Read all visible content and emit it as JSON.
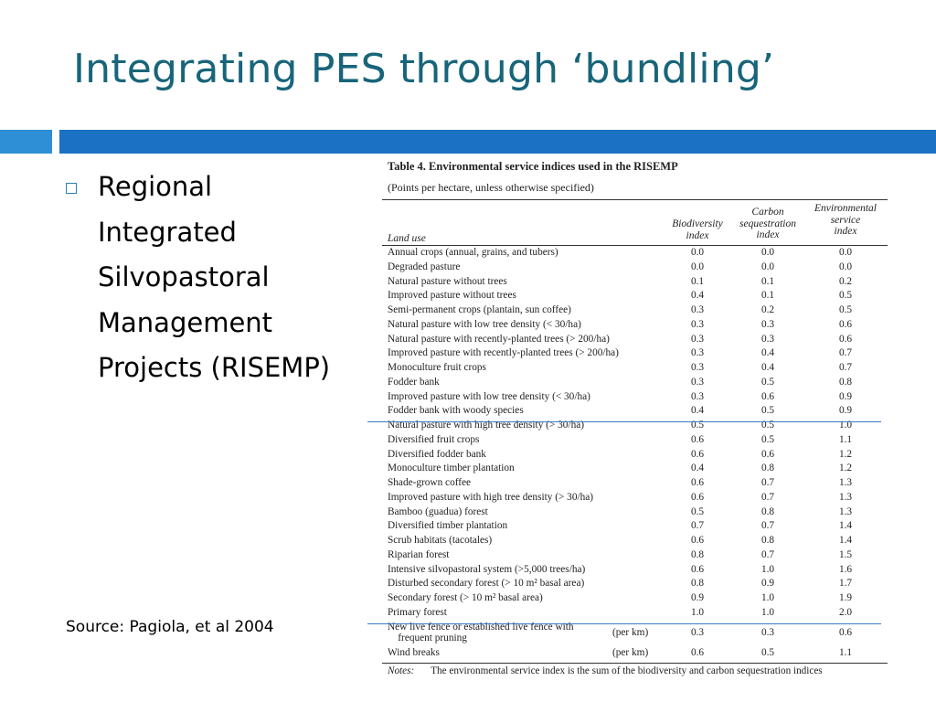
{
  "slide": {
    "title": "Integrating PES through ‘bundling’",
    "bullet": "Regional\nIntegrated\nSilvopastoral\nManagement\nProjects (RISEMP)",
    "source": "Source: Pagiola, et al 2004",
    "colors": {
      "title": "#17657a",
      "bar_left": "#2e8fd6",
      "bar_right": "#1b72c4",
      "bullet_box": "#2a7fb4",
      "highlight_line": "#3a7cc4"
    }
  },
  "table": {
    "title": "Table 4. Environmental service indices used in the RISEMP",
    "subtitle": "(Points per hectare, unless otherwise specified)",
    "headers": {
      "land_use": "Land use",
      "biodiversity": "Biodiversity\nindex",
      "carbon": "Carbon\nsequestration\nindex",
      "environmental": "Environmental\nservice\nindex"
    },
    "rows": [
      {
        "land": "Annual crops (annual, grains, and tubers)",
        "unit": "",
        "bio": "0.0",
        "carbon": "0.0",
        "env": "0.0"
      },
      {
        "land": "Degraded pasture",
        "unit": "",
        "bio": "0.0",
        "carbon": "0.0",
        "env": "0.0"
      },
      {
        "land": "Natural pasture without trees",
        "unit": "",
        "bio": "0.1",
        "carbon": "0.1",
        "env": "0.2"
      },
      {
        "land": "Improved pasture without trees",
        "unit": "",
        "bio": "0.4",
        "carbon": "0.1",
        "env": "0.5"
      },
      {
        "land": "Semi-permanent crops (plantain, sun coffee)",
        "unit": "",
        "bio": "0.3",
        "carbon": "0.2",
        "env": "0.5"
      },
      {
        "land": "Natural pasture with low tree density (< 30/ha)",
        "unit": "",
        "bio": "0.3",
        "carbon": "0.3",
        "env": "0.6"
      },
      {
        "land": "Natural pasture with recently-planted trees (> 200/ha)",
        "unit": "",
        "bio": "0.3",
        "carbon": "0.3",
        "env": "0.6"
      },
      {
        "land": "Improved pasture with recently-planted trees (> 200/ha)",
        "unit": "",
        "bio": "0.3",
        "carbon": "0.4",
        "env": "0.7"
      },
      {
        "land": "Monoculture fruit crops",
        "unit": "",
        "bio": "0.3",
        "carbon": "0.4",
        "env": "0.7"
      },
      {
        "land": "Fodder bank",
        "unit": "",
        "bio": "0.3",
        "carbon": "0.5",
        "env": "0.8"
      },
      {
        "land": "Improved pasture with low tree density (< 30/ha)",
        "unit": "",
        "bio": "0.3",
        "carbon": "0.6",
        "env": "0.9"
      },
      {
        "land": "Fodder bank with woody species",
        "unit": "",
        "bio": "0.4",
        "carbon": "0.5",
        "env": "0.9"
      },
      {
        "land": "Natural pasture with high tree density (> 30/ha)",
        "unit": "",
        "bio": "0.5",
        "carbon": "0.5",
        "env": "1.0"
      },
      {
        "land": "Diversified fruit crops",
        "unit": "",
        "bio": "0.6",
        "carbon": "0.5",
        "env": "1.1"
      },
      {
        "land": "Diversified fodder bank",
        "unit": "",
        "bio": "0.6",
        "carbon": "0.6",
        "env": "1.2"
      },
      {
        "land": "Monoculture timber plantation",
        "unit": "",
        "bio": "0.4",
        "carbon": "0.8",
        "env": "1.2"
      },
      {
        "land": "Shade-grown coffee",
        "unit": "",
        "bio": "0.6",
        "carbon": "0.7",
        "env": "1.3"
      },
      {
        "land": "Improved pasture with high tree density (> 30/ha)",
        "unit": "",
        "bio": "0.6",
        "carbon": "0.7",
        "env": "1.3"
      },
      {
        "land": "Bamboo (guadua) forest",
        "unit": "",
        "bio": "0.5",
        "carbon": "0.8",
        "env": "1.3"
      },
      {
        "land": "Diversified timber plantation",
        "unit": "",
        "bio": "0.7",
        "carbon": "0.7",
        "env": "1.4"
      },
      {
        "land": "Scrub habitats (tacotales)",
        "unit": "",
        "bio": "0.6",
        "carbon": "0.8",
        "env": "1.4"
      },
      {
        "land": "Riparian forest",
        "unit": "",
        "bio": "0.8",
        "carbon": "0.7",
        "env": "1.5"
      },
      {
        "land": "Intensive silvopastoral system (>5,000 trees/ha)",
        "unit": "",
        "bio": "0.6",
        "carbon": "1.0",
        "env": "1.6"
      },
      {
        "land": "Disturbed secondary forest (> 10 m² basal area)",
        "unit": "",
        "bio": "0.8",
        "carbon": "0.9",
        "env": "1.7"
      },
      {
        "land": "Secondary forest (> 10 m² basal area)",
        "unit": "",
        "bio": "0.9",
        "carbon": "1.0",
        "env": "1.9"
      },
      {
        "land": "Primary forest",
        "unit": "",
        "bio": "1.0",
        "carbon": "1.0",
        "env": "2.0"
      },
      {
        "land": "New live fence or established live fence with\n    frequent pruning",
        "unit": "(per km)",
        "bio": "0.3",
        "carbon": "0.3",
        "env": "0.6"
      },
      {
        "land": "Wind breaks",
        "unit": "(per km)",
        "bio": "0.6",
        "carbon": "0.5",
        "env": "1.1"
      }
    ],
    "notes_label": "Notes:",
    "notes_text": "The environmental service index is the sum of the biodiversity and carbon sequestration indices"
  }
}
